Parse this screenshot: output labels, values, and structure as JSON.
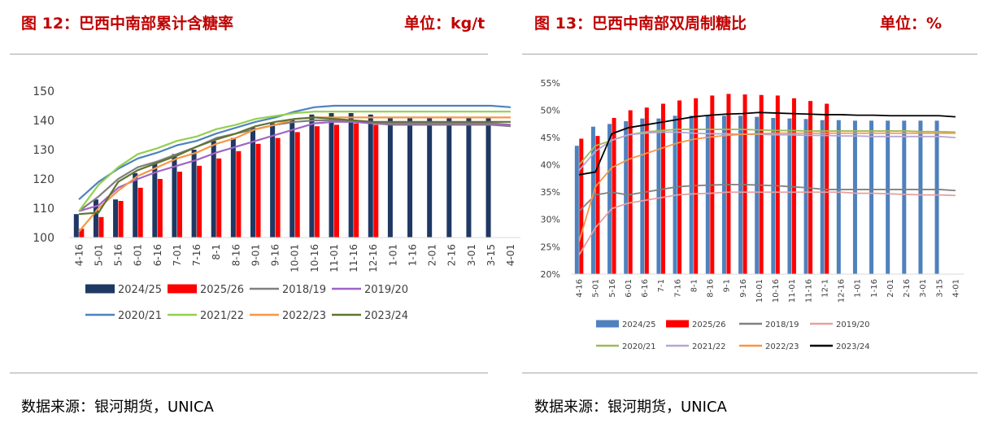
{
  "charts": [
    {
      "title": "图 12：巴西中南部累计含糖率",
      "unit": "单位：kg/t",
      "source": "数据来源：银河期货，UNICA",
      "chart_data": {
        "type": "bar+line",
        "categories": [
          "4-16",
          "5-01",
          "5-16",
          "6-01",
          "6-16",
          "7-01",
          "7-16",
          "8-1",
          "8-16",
          "9-01",
          "9-16",
          "10-01",
          "10-16",
          "11-01",
          "11-16",
          "12-16",
          "1-01",
          "1-16",
          "2-01",
          "2-16",
          "3-01",
          "3-15",
          "4-01"
        ],
        "y_ticks": [
          "100",
          "110",
          "120",
          "130",
          "140",
          "150"
        ],
        "ylim": [
          100,
          150
        ],
        "bar_series": [
          {
            "name": "2024/25",
            "color": "#1f3864",
            "values": [
              108,
              113,
              113,
              122,
              125.5,
              128.5,
              130,
              133,
              134,
              137.5,
              139,
              140.5,
              142,
              142.5,
              142.5,
              142,
              141,
              141,
              141,
              141,
              141,
              141,
              null
            ]
          },
          {
            "name": "2025/26",
            "color": "#ff0000",
            "values": [
              103,
              107,
              112.5,
              117,
              120,
              122.5,
              124.5,
              127,
              129.5,
              132,
              134,
              136,
              138,
              138.5,
              139,
              138.5,
              null,
              null,
              null,
              null,
              null,
              null,
              null
            ]
          }
        ],
        "line_series": [
          {
            "name": "2018/19",
            "color": "#808080",
            "values": [
              109,
              114,
              120,
              124,
              126,
              128.5,
              131,
              134,
              135.5,
              137,
              138.5,
              139.5,
              140,
              140,
              139.5,
              139,
              138.5,
              138.5,
              138.5,
              138.5,
              138.5,
              138.5,
              138
            ]
          },
          {
            "name": "2019/20",
            "color": "#a064c8",
            "values": [
              109,
              111,
              117,
              120,
              122.5,
              124.5,
              126.5,
              129,
              131,
              133,
              135,
              137,
              139,
              139.5,
              139.5,
              139,
              139,
              139,
              139,
              139,
              139,
              139,
              138.5
            ]
          },
          {
            "name": "2020/21",
            "color": "#4f81bd",
            "values": [
              113,
              119,
              123.5,
              127,
              129,
              131.5,
              133,
              135.5,
              137.5,
              139.5,
              141,
              143,
              144.5,
              145,
              145,
              145,
              145,
              145,
              145,
              145,
              145,
              145,
              144.5
            ]
          },
          {
            "name": "2021/22",
            "color": "#92d050",
            "values": [
              109,
              118,
              124,
              128.5,
              130.5,
              133,
              134.5,
              137,
              138.5,
              140.5,
              141.5,
              142.5,
              143,
              143,
              143,
              143,
              143,
              143,
              143,
              143,
              143,
              143,
              143
            ]
          },
          {
            "name": "2022/23",
            "color": "#f79646",
            "values": [
              102,
              110,
              116,
              121,
              124,
              127,
              129,
              132,
              134,
              137,
              138.5,
              140.5,
              141,
              141,
              141,
              141,
              141,
              141,
              141,
              141,
              141,
              141,
              141
            ]
          },
          {
            "name": "2023/24",
            "color": "#5f7530",
            "values": [
              108,
              108.5,
              119,
              123,
              125.5,
              128,
              131,
              133.5,
              135.5,
              138,
              139.5,
              140.5,
              141,
              140.5,
              140,
              139.5,
              139.5,
              139.5,
              139.5,
              139.5,
              139.5,
              139.5,
              139.5
            ]
          }
        ],
        "legend": [
          [
            "2024/25",
            "2025/26",
            "2018/19",
            "2019/20"
          ],
          [
            "2020/21",
            "2021/22",
            "2022/23",
            "2023/24"
          ]
        ]
      }
    },
    {
      "title": "图 13：巴西中南部双周制糖比",
      "unit": "单位：%",
      "source": "数据来源：银河期货，UNICA",
      "chart_data": {
        "type": "bar+line",
        "categories": [
          "4-16",
          "5-01",
          "5-16",
          "6-01",
          "6-16",
          "7-1",
          "7-16",
          "8-1",
          "8-16",
          "9-1",
          "9-16",
          "10-01",
          "10-16",
          "11-01",
          "11-16",
          "12-1",
          "12-16",
          "1-01",
          "1-16",
          "2-01",
          "2-16",
          "3-01",
          "3-15",
          "4-01"
        ],
        "y_ticks": [
          "20%",
          "25%",
          "30%",
          "35%",
          "40%",
          "45%",
          "50%",
          "55%"
        ],
        "ylim": [
          20,
          55
        ],
        "bar_series": [
          {
            "name": "2024/25",
            "color": "#4f81bd",
            "values": [
              43.5,
              47,
              47.5,
              48,
              48.5,
              48.5,
              49,
              49,
              49,
              49,
              49,
              48.8,
              48.6,
              48.5,
              48.4,
              48.2,
              48.2,
              48.1,
              48.1,
              48.1,
              48.1,
              48.1,
              48.1,
              null
            ]
          },
          {
            "name": "2025/26",
            "color": "#ff0000",
            "values": [
              44.8,
              45.3,
              48.6,
              50,
              50.5,
              51.2,
              51.8,
              52.2,
              52.7,
              53,
              52.9,
              52.8,
              52.7,
              52.2,
              51.7,
              51.2,
              null,
              null,
              null,
              null,
              null,
              null,
              null,
              null
            ]
          }
        ],
        "line_series": [
          {
            "name": "2018/19",
            "color": "#808080",
            "values": [
              31.5,
              34.5,
              35,
              34.5,
              35,
              35.5,
              36,
              36.2,
              36.3,
              36.4,
              36.4,
              36.3,
              36.2,
              36,
              35.8,
              35.5,
              35.5,
              35.5,
              35.5,
              35.5,
              35.5,
              35.5,
              35.5,
              35.3
            ]
          },
          {
            "name": "2019/20",
            "color": "#e6a0a0",
            "values": [
              23.5,
              28.5,
              32,
              33,
              33.5,
              34,
              34.5,
              34.7,
              34.8,
              35,
              35,
              35,
              35,
              35,
              35,
              35,
              35,
              34.8,
              34.8,
              34.7,
              34.6,
              34.5,
              34.5,
              34.4
            ]
          },
          {
            "name": "2020/21",
            "color": "#9bbb59",
            "values": [
              40,
              43.5,
              44.5,
              45.5,
              46,
              46.3,
              46.5,
              46.5,
              46.5,
              46.5,
              46.5,
              46.4,
              46.3,
              46.3,
              46.2,
              46.2,
              46.2,
              46.2,
              46.2,
              46.2,
              46.2,
              46.1,
              46.1,
              46
            ]
          },
          {
            "name": "2021/22",
            "color": "#b4a7d6",
            "values": [
              39,
              42.5,
              44.5,
              45.5,
              45.8,
              46,
              46,
              45.8,
              45.7,
              45.7,
              45.6,
              45.6,
              45.5,
              45.5,
              45.4,
              45.4,
              45.3,
              45.3,
              45.2,
              45.2,
              45.2,
              45.2,
              45.2,
              45
            ]
          },
          {
            "name": "2022/23",
            "color": "#f79646",
            "values": [
              26,
              36,
              39.5,
              41,
              42,
              43,
              44,
              44.7,
              45.1,
              45.4,
              45.6,
              45.7,
              45.8,
              45.8,
              45.8,
              45.8,
              45.8,
              45.8,
              45.8,
              45.8,
              45.8,
              45.8,
              45.8,
              45.8
            ]
          },
          {
            "name": "2023/24",
            "color": "#000000",
            "values": [
              38.2,
              38.7,
              45.7,
              46.8,
              47.3,
              47.8,
              48.3,
              48.8,
              49.1,
              49.3,
              49.4,
              49.6,
              49.5,
              49.4,
              49.3,
              49.2,
              49.2,
              49.1,
              49.1,
              49,
              49,
              49,
              49,
              48.8
            ]
          }
        ],
        "legend": [
          [
            "2024/25",
            "2025/26",
            "2018/19",
            "2019/20"
          ],
          [
            "2020/21",
            "2021/22",
            "2022/23",
            "2023/24"
          ]
        ]
      }
    }
  ]
}
